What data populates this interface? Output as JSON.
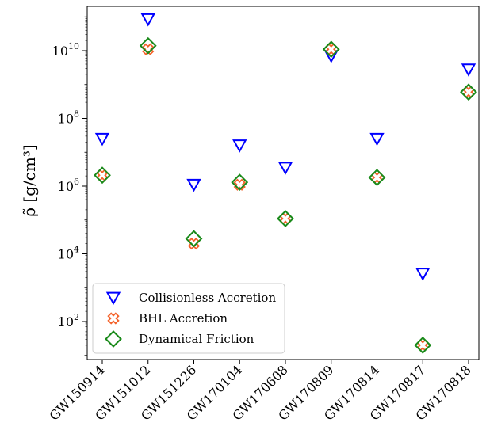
{
  "chart_data": {
    "type": "scatter",
    "title": "",
    "xlabel": "",
    "ylabel": "ρ̃ [g/cm³]",
    "yscale": "log",
    "ylim": [
      5,
      300000000000.0
    ],
    "grid": false,
    "legend_position": "lower-left",
    "categories": [
      "GW150914",
      "GW151012",
      "GW151226",
      "GW170104",
      "GW170608",
      "GW170809",
      "GW170814",
      "GW170817",
      "GW170818"
    ],
    "yticks": [
      {
        "value": 100,
        "base": "10",
        "exp": "2"
      },
      {
        "value": 10000,
        "base": "10",
        "exp": "4"
      },
      {
        "value": 1000000,
        "base": "10",
        "exp": "6"
      },
      {
        "value": 100000000,
        "base": "10",
        "exp": "8"
      },
      {
        "value": 10000000000,
        "base": "10",
        "exp": "10"
      }
    ],
    "series": [
      {
        "name": "Collisionless Accretion",
        "marker": "triangle-down",
        "color": "#0000ff",
        "values": [
          25000000.0,
          85000000000.0,
          1100000.0,
          16000000.0,
          3500000.0,
          7000000000.0,
          25000000.0,
          2600.0,
          2800000000.0
        ]
      },
      {
        "name": "BHL Accretion",
        "marker": "x-thick",
        "color": "#f4622a",
        "values": [
          2100000.0,
          11000000000.0,
          20000.0,
          1100000.0,
          110000.0,
          11000000000.0,
          1800000.0,
          20.0,
          600000000.0
        ]
      },
      {
        "name": "Dynamical Friction",
        "marker": "diamond",
        "color": "#1a8a1a",
        "values": [
          2100000.0,
          14000000000.0,
          28000.0,
          1300000.0,
          110000.0,
          11000000000.0,
          1800000.0,
          20.0,
          600000000.0
        ]
      }
    ]
  }
}
